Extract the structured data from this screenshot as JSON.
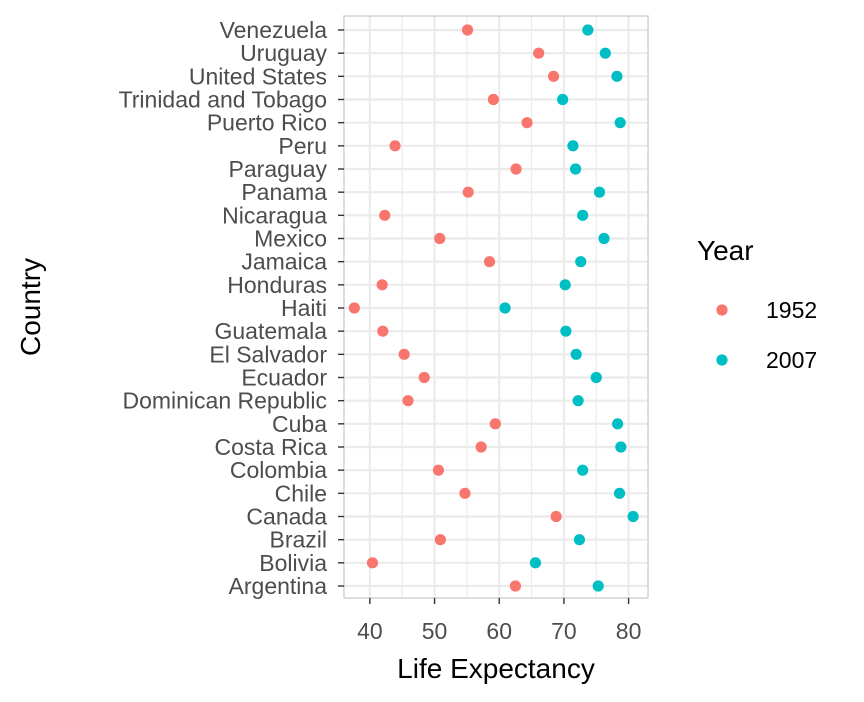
{
  "chart_data": {
    "type": "scatter",
    "xlabel": "Life Expectancy",
    "ylabel": "Country",
    "xlim": [
      36,
      83
    ],
    "xticks": [
      40,
      50,
      60,
      70,
      80
    ],
    "grid": true,
    "legend": {
      "title": "Year",
      "placement": "right"
    },
    "categories": [
      "Argentina",
      "Bolivia",
      "Brazil",
      "Canada",
      "Chile",
      "Colombia",
      "Costa Rica",
      "Cuba",
      "Dominican Republic",
      "Ecuador",
      "El Salvador",
      "Guatemala",
      "Haiti",
      "Honduras",
      "Jamaica",
      "Mexico",
      "Nicaragua",
      "Panama",
      "Paraguay",
      "Peru",
      "Puerto Rico",
      "Trinidad and Tobago",
      "United States",
      "Uruguay",
      "Venezuela"
    ],
    "series": [
      {
        "name": "1952",
        "color": "#F8766D",
        "values": [
          62.5,
          40.4,
          50.9,
          68.8,
          54.7,
          50.6,
          57.2,
          59.4,
          45.9,
          48.4,
          45.3,
          42.0,
          37.6,
          41.9,
          58.5,
          50.8,
          42.3,
          55.2,
          62.6,
          43.9,
          64.3,
          59.1,
          68.4,
          66.1,
          55.1
        ]
      },
      {
        "name": "2007",
        "color": "#00BFC4",
        "values": [
          75.3,
          65.6,
          72.4,
          80.7,
          78.6,
          72.9,
          78.8,
          78.3,
          72.2,
          75.0,
          71.9,
          70.3,
          60.9,
          70.2,
          72.6,
          76.2,
          72.9,
          75.5,
          71.8,
          71.4,
          78.7,
          69.8,
          78.2,
          76.4,
          73.7
        ]
      }
    ]
  }
}
